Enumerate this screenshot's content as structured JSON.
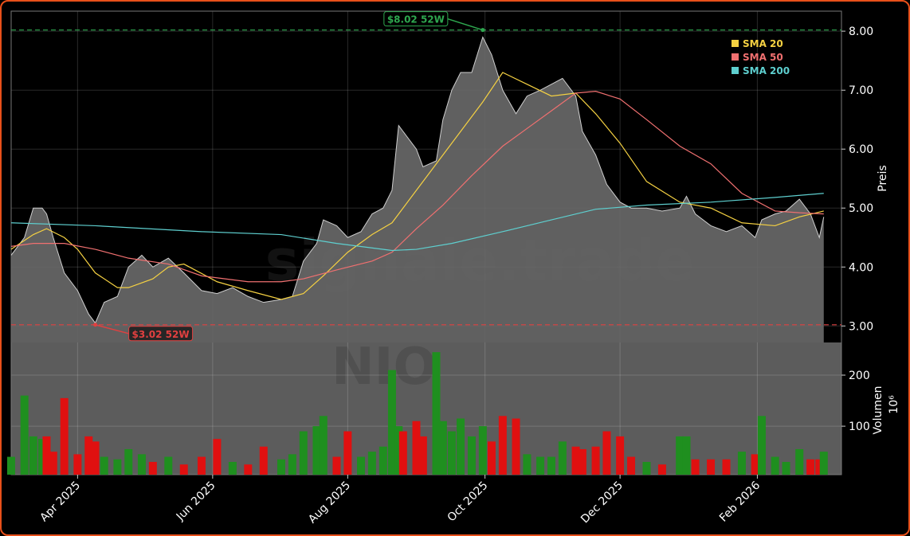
{
  "chart_data": [
    {
      "type": "area",
      "x": [
        0,
        6,
        10,
        14,
        16,
        19,
        24,
        30,
        35,
        38,
        42,
        48,
        53,
        59,
        64,
        71,
        78,
        86,
        93,
        100,
        107,
        114,
        122,
        127,
        132,
        138,
        141,
        147,
        152,
        158,
        163,
        168,
        172,
        175,
        177,
        183,
        186,
        192,
        195,
        199,
        203,
        208,
        213,
        217,
        222,
        228,
        233,
        239,
        244,
        249,
        255,
        258,
        264,
        269,
        275,
        280,
        287,
        294,
        302,
        305,
        309,
        316,
        323,
        330,
        336,
        339,
        345,
        350,
        356,
        361,
        365,
        367
      ],
      "values": [
        4.2,
        4.5,
        5.0,
        5.0,
        4.9,
        4.5,
        3.9,
        3.6,
        3.2,
        3.05,
        3.4,
        3.5,
        4.0,
        4.2,
        4.0,
        4.15,
        3.9,
        3.6,
        3.55,
        3.65,
        3.5,
        3.4,
        3.45,
        3.5,
        4.1,
        4.4,
        4.8,
        4.7,
        4.5,
        4.6,
        4.9,
        5.0,
        5.3,
        6.4,
        6.3,
        6.0,
        5.7,
        5.8,
        6.5,
        7.0,
        7.3,
        7.3,
        7.9,
        7.6,
        7.0,
        6.6,
        6.9,
        7.0,
        7.1,
        7.2,
        6.9,
        6.3,
        5.9,
        5.4,
        5.1,
        5.0,
        5.0,
        4.95,
        5.0,
        5.2,
        4.9,
        4.7,
        4.6,
        4.7,
        4.5,
        4.8,
        4.9,
        4.95,
        5.15,
        4.9,
        4.5,
        4.85
      ],
      "color": "#6a6a6a",
      "series": [
        {
          "name": "SMA 20",
          "color": "#f5d142",
          "x": [
            0,
            10,
            16,
            24,
            30,
            38,
            48,
            53,
            64,
            71,
            78,
            93,
            107,
            122,
            132,
            141,
            152,
            163,
            172,
            183,
            195,
            203,
            213,
            222,
            233,
            244,
            255,
            264,
            275,
            287,
            302,
            316,
            330,
            345,
            356,
            367
          ],
          "values": [
            4.3,
            4.55,
            4.65,
            4.5,
            4.3,
            3.9,
            3.65,
            3.65,
            3.8,
            4.0,
            4.05,
            3.75,
            3.6,
            3.45,
            3.55,
            3.85,
            4.25,
            4.55,
            4.75,
            5.3,
            5.9,
            6.3,
            6.8,
            7.3,
            7.1,
            6.9,
            6.95,
            6.6,
            6.1,
            5.45,
            5.1,
            5.0,
            4.75,
            4.7,
            4.85,
            4.95
          ]
        },
        {
          "name": "SMA 50",
          "color": "#f07070",
          "x": [
            0,
            10,
            24,
            38,
            53,
            71,
            86,
            107,
            122,
            132,
            147,
            163,
            172,
            183,
            195,
            208,
            222,
            233,
            244,
            255,
            264,
            275,
            287,
            302,
            316,
            330,
            345,
            356,
            367
          ],
          "values": [
            4.35,
            4.4,
            4.4,
            4.3,
            4.15,
            4.05,
            3.85,
            3.75,
            3.75,
            3.8,
            3.95,
            4.1,
            4.25,
            4.65,
            5.05,
            5.55,
            6.05,
            6.35,
            6.65,
            6.95,
            6.98,
            6.85,
            6.5,
            6.05,
            5.75,
            5.25,
            4.95,
            4.92,
            4.9
          ]
        },
        {
          "name": "SMA 200",
          "color": "#5ecfcf",
          "x": [
            0,
            38,
            86,
            122,
            147,
            172,
            183,
            199,
            222,
            244,
            264,
            287,
            316,
            345,
            367
          ],
          "values": [
            4.75,
            4.7,
            4.6,
            4.55,
            4.4,
            4.28,
            4.3,
            4.4,
            4.6,
            4.8,
            4.98,
            5.05,
            5.1,
            5.18,
            5.25
          ]
        }
      ],
      "xlim": [
        0,
        375
      ],
      "ylim": [
        2.72,
        8.34
      ],
      "yticks": [
        {
          "value": 3,
          "label": "3.00"
        },
        {
          "value": 4,
          "label": "4.00"
        },
        {
          "value": 5,
          "label": "5.00"
        },
        {
          "value": 6,
          "label": "6.00"
        },
        {
          "value": 7,
          "label": "7.00"
        },
        {
          "value": 8,
          "label": "8.00"
        }
      ],
      "ylabel": "Preis",
      "annotations": [
        {
          "text": "$8.02 52W",
          "value": 8.02,
          "x": 213,
          "color": "#2ea84f"
        },
        {
          "text": "$3.02 52W",
          "value": 3.02,
          "x": 38,
          "color": "#e04040"
        }
      ],
      "watermark": "signale.trade",
      "legend": "upper right",
      "grid": true
    },
    {
      "type": "bar",
      "x": [
        0,
        6,
        10,
        14,
        16,
        19,
        24,
        30,
        35,
        38,
        42,
        48,
        53,
        59,
        64,
        71,
        78,
        86,
        93,
        100,
        107,
        114,
        122,
        127,
        132,
        138,
        141,
        147,
        152,
        158,
        163,
        168,
        172,
        175,
        177,
        183,
        186,
        192,
        195,
        199,
        203,
        208,
        213,
        217,
        222,
        228,
        233,
        239,
        244,
        249,
        255,
        258,
        264,
        269,
        275,
        280,
        287,
        294,
        302,
        305,
        309,
        316,
        323,
        330,
        336,
        339,
        345,
        350,
        356,
        361,
        365,
        367
      ],
      "values": [
        40,
        160,
        80,
        75,
        80,
        50,
        155,
        45,
        80,
        70,
        40,
        35,
        55,
        45,
        30,
        40,
        25,
        40,
        75,
        30,
        25,
        60,
        35,
        45,
        90,
        100,
        120,
        40,
        90,
        40,
        50,
        60,
        210,
        100,
        90,
        110,
        80,
        245,
        110,
        90,
        115,
        80,
        100,
        70,
        120,
        115,
        45,
        40,
        40,
        70,
        60,
        55,
        60,
        90,
        80,
        40,
        30,
        25,
        80,
        80,
        35,
        35,
        35,
        50,
        45,
        120,
        40,
        30,
        55,
        35,
        35,
        50
      ],
      "up_color": "#1f8f1f",
      "down_color": "#e01010",
      "xlim": [
        0,
        375
      ],
      "ylim": [
        5,
        264
      ],
      "yticks": [
        100,
        200
      ],
      "xticks": [
        {
          "value": 30,
          "label": "Apr 2025"
        },
        {
          "value": 91,
          "label": "Jun 2025"
        },
        {
          "value": 152,
          "label": "Aug 2025"
        },
        {
          "value": 214,
          "label": "Oct 2025"
        },
        {
          "value": 275,
          "label": "Dec 2025"
        },
        {
          "value": 337,
          "label": "Feb 2026"
        }
      ],
      "ylabel": "Volumen",
      "scale_label": "10⁶",
      "watermark": "NIO",
      "grid": true
    }
  ]
}
